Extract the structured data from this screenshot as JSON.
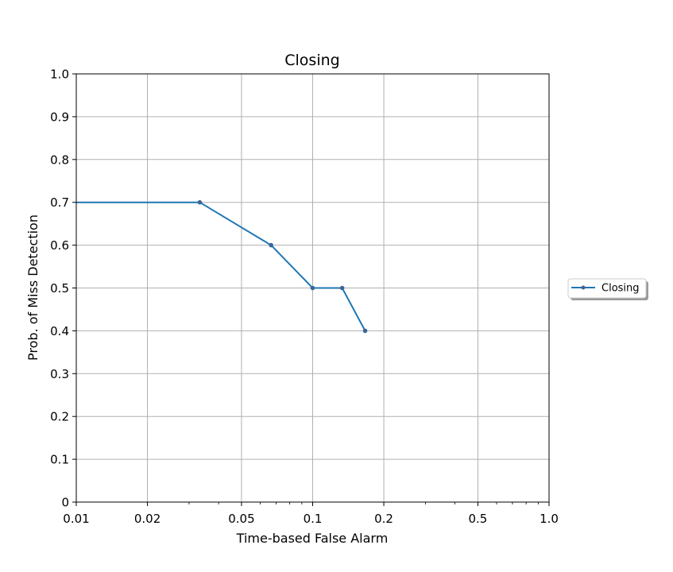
{
  "chart_data": {
    "type": "line",
    "title": "Closing",
    "xlabel": "Time-based False Alarm",
    "ylabel": "Prob. of Miss Detection",
    "xscale": "log",
    "xlim": [
      0.01,
      1.0
    ],
    "ylim": [
      0,
      1.0
    ],
    "grid": true,
    "legend_position": "right, outside plot",
    "xticks": [
      {
        "value": 0.01,
        "label": "0.01"
      },
      {
        "value": 0.02,
        "label": "0.02"
      },
      {
        "value": 0.05,
        "label": "0.05"
      },
      {
        "value": 0.1,
        "label": "0.1"
      },
      {
        "value": 0.2,
        "label": "0.2"
      },
      {
        "value": 0.5,
        "label": "0.5"
      },
      {
        "value": 1.0,
        "label": "1.0"
      }
    ],
    "yticks": [
      {
        "value": 0,
        "label": "0"
      },
      {
        "value": 0.1,
        "label": "0.1"
      },
      {
        "value": 0.2,
        "label": "0.2"
      },
      {
        "value": 0.3,
        "label": "0.3"
      },
      {
        "value": 0.4,
        "label": "0.4"
      },
      {
        "value": 0.5,
        "label": "0.5"
      },
      {
        "value": 0.6,
        "label": "0.6"
      },
      {
        "value": 0.7,
        "label": "0.7"
      },
      {
        "value": 0.8,
        "label": "0.8"
      },
      {
        "value": 0.9,
        "label": "0.9"
      },
      {
        "value": 1.0,
        "label": "1.0"
      }
    ],
    "series": [
      {
        "name": "Closing",
        "color": "#1f77b4",
        "marker_color": "#4b5e8c",
        "points": [
          {
            "x": 0.01,
            "y": 0.7,
            "marker": false
          },
          {
            "x": 0.0333,
            "y": 0.7,
            "marker": true
          },
          {
            "x": 0.0667,
            "y": 0.6,
            "marker": true
          },
          {
            "x": 0.1,
            "y": 0.5,
            "marker": true
          },
          {
            "x": 0.1333,
            "y": 0.5,
            "marker": true
          },
          {
            "x": 0.1667,
            "y": 0.4,
            "marker": true
          }
        ]
      }
    ]
  }
}
